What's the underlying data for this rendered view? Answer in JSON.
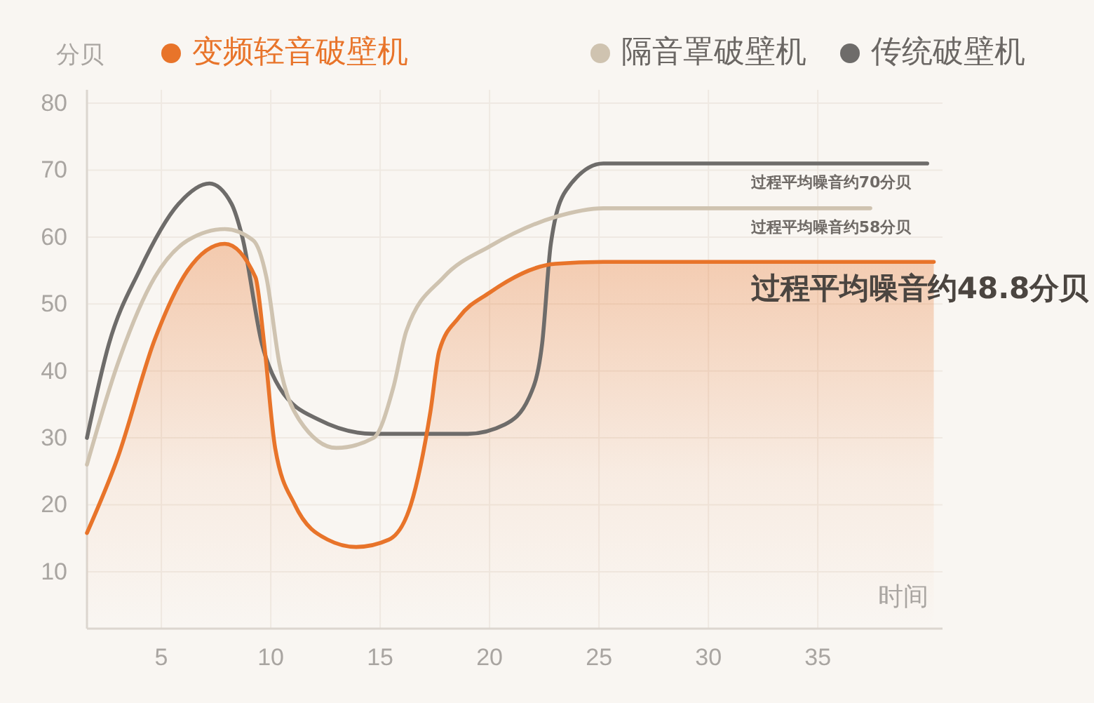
{
  "chart_data": {
    "type": "line",
    "xlabel": "时间",
    "ylabel": "分贝",
    "xlim": [
      1.6,
      40.7
    ],
    "xticks": [
      5,
      10,
      15,
      20,
      25,
      30,
      35
    ],
    "ylim": [
      1.5,
      82
    ],
    "yticks": [
      10,
      20,
      30,
      40,
      50,
      60,
      70,
      80
    ],
    "grid": true,
    "legend": "top",
    "series": [
      {
        "name": "变频轻音破壁机",
        "type": "area",
        "color": "#e8742a",
        "x": [
          1.6,
          3,
          4.7,
          6.2,
          7.9,
          9.3,
          9.7,
          10.2,
          11.1,
          12.6,
          13.9,
          15.4,
          16.4,
          17.3,
          17.7,
          18.6,
          20,
          23,
          25.2,
          40.3
        ],
        "values": [
          15.8,
          27,
          44.7,
          55,
          59,
          54,
          44,
          28.5,
          20,
          14.8,
          13.7,
          14.8,
          20,
          34,
          43,
          48,
          51.7,
          56,
          56.3,
          56.3
        ]
      },
      {
        "name": "隔音罩破壁机",
        "color": "#cfc3b0",
        "x": [
          1.6,
          3,
          4.7,
          6.2,
          7.9,
          9.2,
          9.8,
          10.4,
          11.3,
          13,
          14.7,
          15.6,
          16.2,
          17.9,
          20,
          23,
          25.2,
          37.4
        ],
        "values": [
          26,
          41,
          54,
          59.5,
          61.2,
          59.5,
          54,
          41,
          32.7,
          28.5,
          30,
          37.5,
          46,
          54,
          58.6,
          63,
          64.3,
          64.3
        ]
      },
      {
        "name": "传统破壁机",
        "color": "#6e6c6a",
        "x": [
          1.6,
          2.6,
          4,
          5.8,
          7.2,
          8.2,
          8.7,
          9.6,
          10.4,
          12.2,
          14.7,
          19,
          20.7,
          21.8,
          22.4,
          22.8,
          23.5,
          25.2,
          40
        ],
        "values": [
          30,
          44,
          55,
          65,
          68,
          65,
          60,
          44,
          37.5,
          32.7,
          30.6,
          30.6,
          32,
          36,
          44,
          59,
          67,
          71,
          71
        ]
      }
    ],
    "annotations": [
      "过程平均噪音约70分贝",
      "过程平均噪音约58分贝",
      "过程平均噪音约48.8分贝"
    ]
  }
}
